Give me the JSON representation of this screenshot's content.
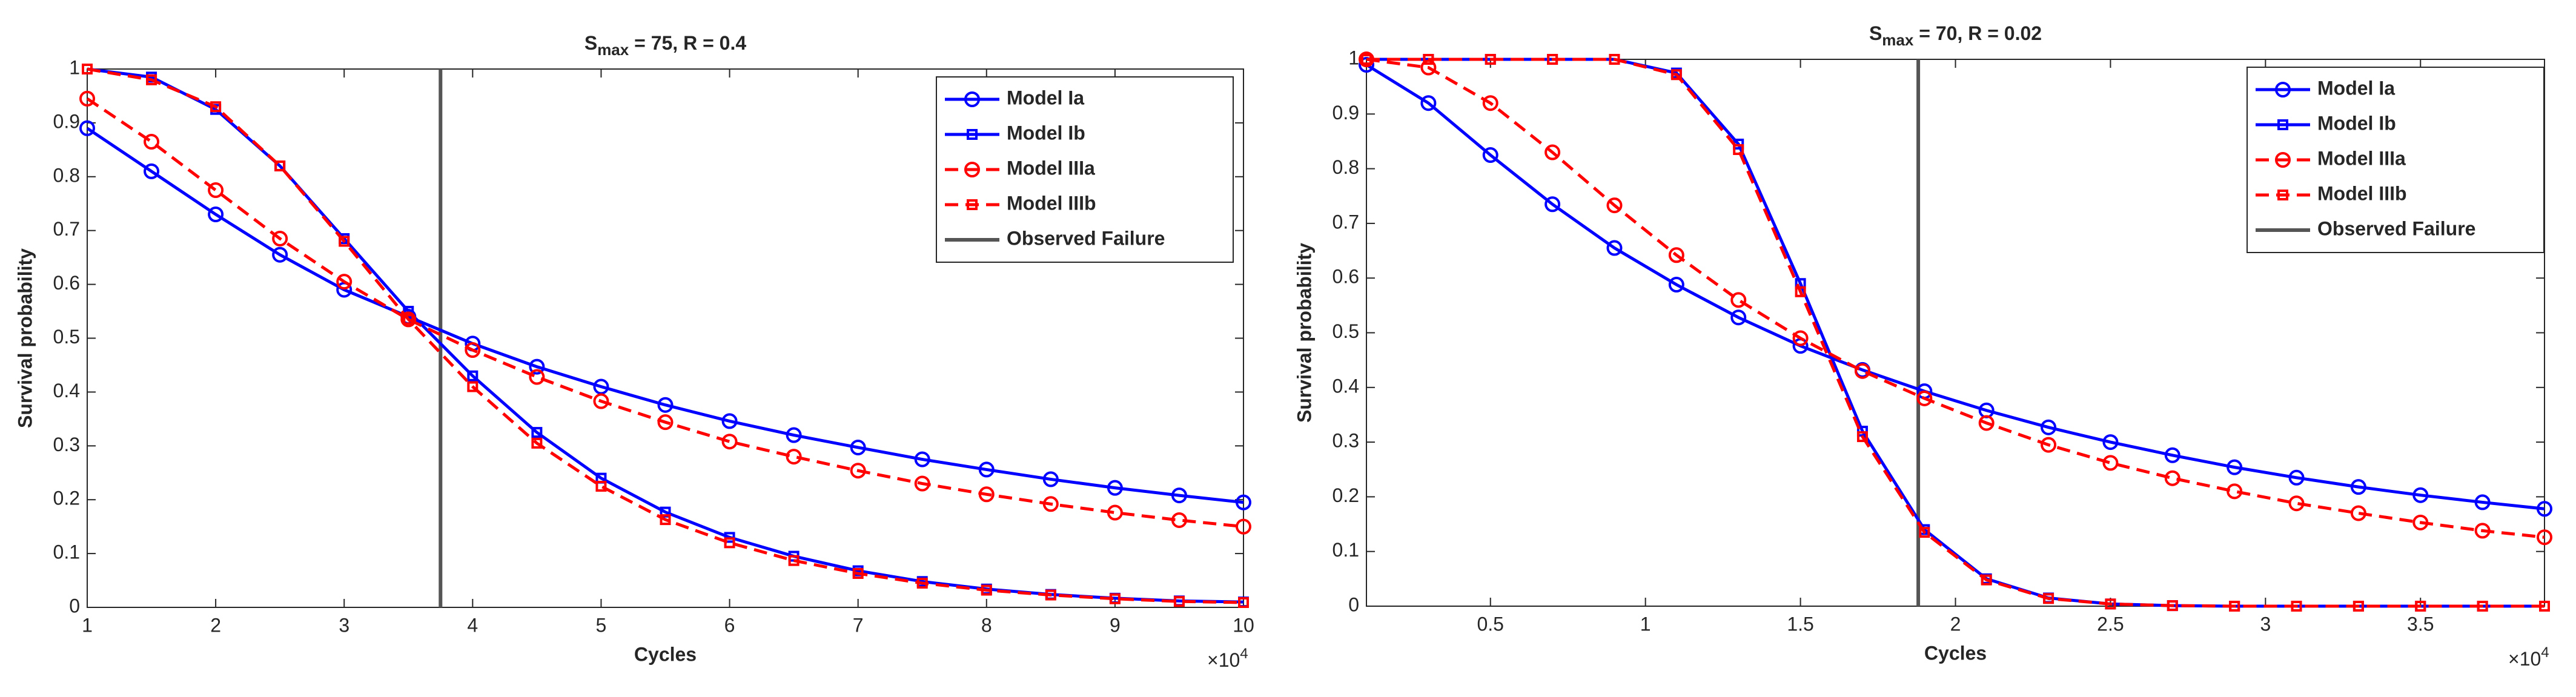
{
  "chart_data": [
    {
      "type": "line",
      "title": {
        "main": "S",
        "sub": "max",
        "rest": " = 75, R = 0.4"
      },
      "xlabel": "Cycles",
      "ylabel": "Survival probability",
      "x_multiplier": {
        "base": "×10",
        "exp": "4"
      },
      "x": [
        1,
        1.5,
        2,
        2.5,
        3,
        3.5,
        4,
        4.5,
        5,
        5.5,
        6,
        6.5,
        7,
        7.5,
        8,
        8.5,
        9,
        9.5,
        10
      ],
      "xlim": [
        1,
        10
      ],
      "xticks": [
        1,
        2,
        3,
        4,
        5,
        6,
        7,
        8,
        9,
        10
      ],
      "ylim": [
        0,
        1
      ],
      "yticks": [
        0,
        0.1,
        0.2,
        0.3,
        0.4,
        0.5,
        0.6,
        0.7,
        0.8,
        0.9,
        1
      ],
      "legend": "upper right",
      "series": [
        {
          "name": "Model Ia",
          "color": "#0000ff",
          "marker": "circle",
          "dashed": false,
          "values": [
            0.89,
            0.81,
            0.73,
            0.655,
            0.59,
            0.54,
            0.49,
            0.447,
            0.41,
            0.376,
            0.346,
            0.32,
            0.297,
            0.275,
            0.256,
            0.238,
            0.222,
            0.208,
            0.195
          ]
        },
        {
          "name": "Model Ib",
          "color": "#0000ff",
          "marker": "square",
          "dashed": false,
          "values": [
            1.0,
            0.985,
            0.925,
            0.82,
            0.685,
            0.55,
            0.43,
            0.325,
            0.24,
            0.177,
            0.13,
            0.095,
            0.068,
            0.048,
            0.034,
            0.024,
            0.017,
            0.012,
            0.01
          ]
        },
        {
          "name": "Model IIIa",
          "color": "#ff0000",
          "marker": "circle",
          "dashed": true,
          "values": [
            0.945,
            0.865,
            0.775,
            0.685,
            0.605,
            0.535,
            0.478,
            0.428,
            0.383,
            0.344,
            0.308,
            0.28,
            0.254,
            0.23,
            0.21,
            0.192,
            0.176,
            0.162,
            0.15
          ]
        },
        {
          "name": "Model IIIb",
          "color": "#ff0000",
          "marker": "square",
          "dashed": true,
          "values": [
            1.0,
            0.98,
            0.93,
            0.82,
            0.68,
            0.535,
            0.41,
            0.305,
            0.225,
            0.163,
            0.12,
            0.087,
            0.063,
            0.045,
            0.032,
            0.023,
            0.016,
            0.011,
            0.009
          ]
        }
      ],
      "vline": {
        "name": "Observed Failure",
        "color": "#555555",
        "x": 3.75
      }
    },
    {
      "type": "line",
      "title": {
        "main": "S",
        "sub": "max",
        "rest": " = 70, R = 0.02"
      },
      "xlabel": "Cycles",
      "ylabel": "Survival probability",
      "x_multiplier": {
        "base": "×10",
        "exp": "4"
      },
      "x": [
        0.1,
        0.3,
        0.5,
        0.7,
        0.9,
        1.1,
        1.3,
        1.5,
        1.7,
        1.9,
        2.1,
        2.3,
        2.5,
        2.7,
        2.9,
        3.1,
        3.3,
        3.5,
        3.7,
        3.9
      ],
      "xlim": [
        0.1,
        3.9
      ],
      "xticks": [
        0.5,
        1,
        1.5,
        2,
        2.5,
        3,
        3.5
      ],
      "ylim": [
        0,
        1
      ],
      "yticks": [
        0,
        0.1,
        0.2,
        0.3,
        0.4,
        0.5,
        0.6,
        0.7,
        0.8,
        0.9,
        1
      ],
      "legend": "upper right",
      "series": [
        {
          "name": "Model Ia",
          "color": "#0000ff",
          "marker": "circle",
          "dashed": false,
          "values": [
            0.99,
            0.92,
            0.825,
            0.735,
            0.655,
            0.588,
            0.528,
            0.476,
            0.432,
            0.393,
            0.358,
            0.327,
            0.3,
            0.276,
            0.254,
            0.235,
            0.218,
            0.203,
            0.19,
            0.178
          ]
        },
        {
          "name": "Model Ib",
          "color": "#0000ff",
          "marker": "square",
          "dashed": false,
          "values": [
            1,
            1,
            1,
            1,
            1,
            0.975,
            0.845,
            0.59,
            0.32,
            0.14,
            0.05,
            0.015,
            0.004,
            0.001,
            0,
            0,
            0,
            0,
            0,
            0
          ]
        },
        {
          "name": "Model IIIa",
          "color": "#ff0000",
          "marker": "circle",
          "dashed": true,
          "values": [
            1,
            0.985,
            0.92,
            0.83,
            0.733,
            0.642,
            0.56,
            0.49,
            0.43,
            0.38,
            0.335,
            0.295,
            0.262,
            0.234,
            0.21,
            0.188,
            0.17,
            0.153,
            0.138,
            0.126
          ]
        },
        {
          "name": "Model IIIb",
          "color": "#ff0000",
          "marker": "square",
          "dashed": true,
          "values": [
            1,
            1,
            1,
            1,
            1,
            0.972,
            0.835,
            0.575,
            0.31,
            0.135,
            0.048,
            0.014,
            0.004,
            0.001,
            0,
            0,
            0,
            0,
            0,
            0
          ]
        }
      ],
      "vline": {
        "name": "Observed Failure",
        "color": "#555555",
        "x": 1.88
      }
    }
  ]
}
